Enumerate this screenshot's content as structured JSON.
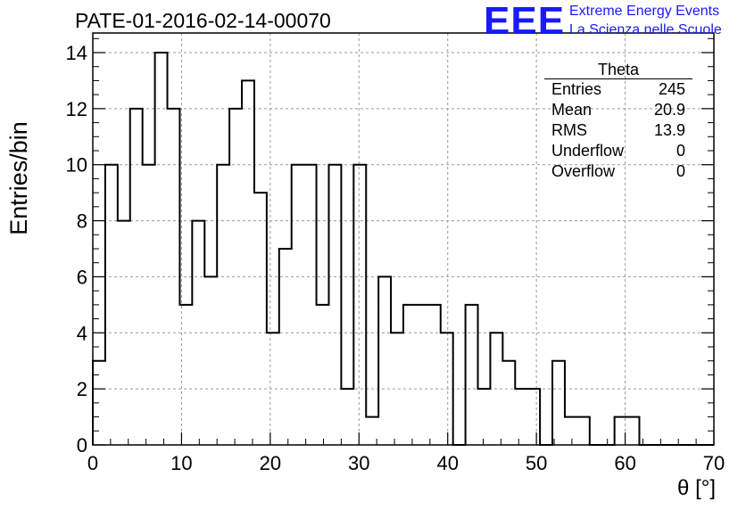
{
  "chart_data": {
    "type": "bar",
    "title": "PATE-01-2016-02-14-00070",
    "xlabel": "θ [°]",
    "ylabel": "Entries/bin",
    "xlim": [
      0,
      70
    ],
    "ylim": [
      0,
      14.7
    ],
    "bin_width": 1.4,
    "x_ticks": [
      "0",
      "10",
      "20",
      "30",
      "40",
      "50",
      "60",
      "70"
    ],
    "y_ticks": [
      "0",
      "2",
      "4",
      "6",
      "8",
      "10",
      "12",
      "14"
    ],
    "grid": true,
    "style": "step-histogram",
    "values": [
      3,
      10,
      8,
      12,
      10,
      14,
      12,
      5,
      8,
      6,
      10,
      12,
      13,
      9,
      4,
      7,
      10,
      10,
      5,
      10,
      2,
      10,
      1,
      6,
      4,
      5,
      5,
      5,
      4,
      0,
      5,
      2,
      4,
      3,
      2,
      2,
      0,
      3,
      1,
      1,
      0,
      0,
      1,
      1,
      0,
      0,
      0,
      0,
      0,
      0
    ],
    "stats_box": {
      "title": "Theta",
      "rows": [
        {
          "label": "Entries",
          "value": "245"
        },
        {
          "label": "Mean",
          "value": "20.9"
        },
        {
          "label": "RMS",
          "value": "13.9"
        },
        {
          "label": "Underflow",
          "value": "0"
        },
        {
          "label": "Overflow",
          "value": "0"
        }
      ]
    }
  },
  "logo": {
    "mark": "EEE",
    "line1": "Extreme Energy Events",
    "line2": "La Scienza nelle Scuole",
    "color": "#1a1aff"
  }
}
